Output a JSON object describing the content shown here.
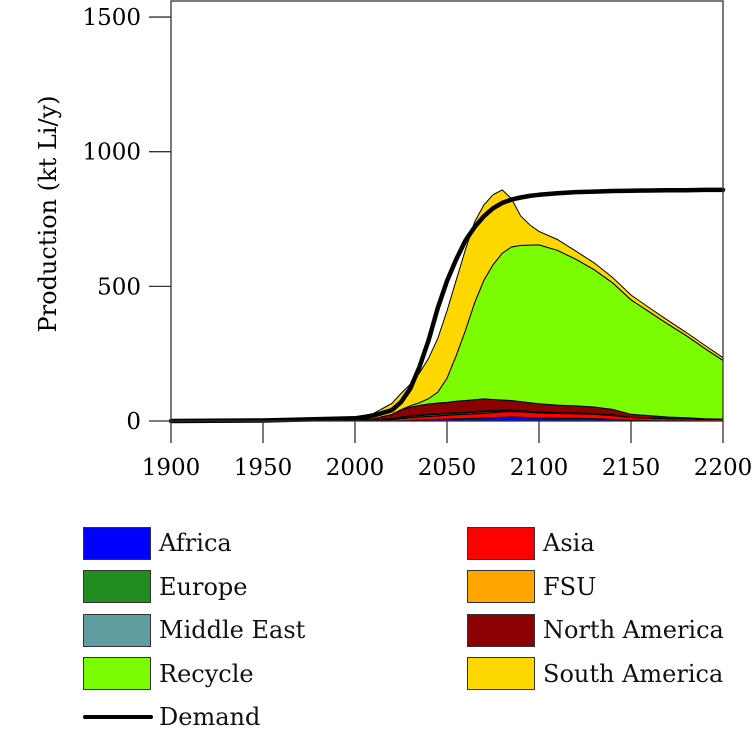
{
  "chart_data": {
    "type": "area",
    "title": "",
    "xlabel": "",
    "ylabel": "Production (kt Li/y)",
    "xlim": [
      1900,
      2200
    ],
    "ylim": [
      0,
      1560
    ],
    "xticks": [
      "1900",
      "1950",
      "2000",
      "2050",
      "2100",
      "2150",
      "2200"
    ],
    "yticks": [
      "0",
      "500",
      "1000",
      "1500"
    ],
    "grid": false,
    "legend_position": "bottom",
    "x": [
      1900,
      1950,
      2000,
      2010,
      2020,
      2025,
      2030,
      2035,
      2040,
      2045,
      2050,
      2055,
      2060,
      2065,
      2070,
      2075,
      2080,
      2085,
      2090,
      2095,
      2100,
      2110,
      2120,
      2130,
      2140,
      2150,
      2160,
      2170,
      2180,
      2190,
      2200
    ],
    "stack_order": [
      "Africa",
      "Asia",
      "Europe",
      "FSU",
      "Middle East",
      "North America",
      "Recycle",
      "South America"
    ],
    "series": [
      {
        "name": "Africa",
        "color": "#0000FF",
        "values": [
          0,
          0,
          0,
          0,
          0,
          1,
          2,
          4,
          5,
          6,
          7,
          8,
          9,
          10,
          11,
          12,
          14,
          15,
          14,
          12,
          11,
          10,
          10,
          9,
          6,
          3,
          2,
          1,
          1,
          0,
          0
        ]
      },
      {
        "name": "Asia",
        "color": "#FF0000",
        "values": [
          0,
          0,
          1,
          2,
          5,
          8,
          10,
          11,
          12,
          13,
          14,
          15,
          16,
          17,
          18,
          19,
          20,
          20,
          20,
          20,
          19,
          18,
          17,
          16,
          14,
          10,
          9,
          8,
          7,
          6,
          6
        ]
      },
      {
        "name": "Europe",
        "color": "#228B22",
        "values": [
          0,
          0,
          0,
          1,
          3,
          4,
          5,
          5,
          6,
          6,
          6,
          6,
          6,
          6,
          6,
          5,
          4,
          3,
          2,
          2,
          2,
          1,
          1,
          1,
          1,
          0,
          0,
          0,
          0,
          0,
          0
        ]
      },
      {
        "name": "FSU",
        "color": "#FFA500",
        "values": [
          0,
          0,
          0,
          0,
          1,
          1,
          1,
          1,
          1,
          1,
          1,
          1,
          1,
          1,
          1,
          1,
          1,
          1,
          1,
          1,
          1,
          1,
          1,
          1,
          1,
          0,
          0,
          0,
          0,
          0,
          0
        ]
      },
      {
        "name": "Middle East",
        "color": "#5F9EA0",
        "values": [
          0,
          0,
          0,
          0,
          1,
          1,
          1,
          1,
          1,
          1,
          1,
          1,
          1,
          1,
          1,
          1,
          1,
          1,
          1,
          1,
          1,
          1,
          1,
          1,
          1,
          0,
          0,
          0,
          0,
          0,
          0
        ]
      },
      {
        "name": "North America",
        "color": "#8B0000",
        "values": [
          0,
          0,
          2,
          5,
          15,
          25,
          32,
          36,
          38,
          40,
          40,
          42,
          43,
          44,
          45,
          42,
          38,
          36,
          34,
          32,
          30,
          28,
          26,
          24,
          20,
          12,
          9,
          6,
          4,
          2,
          1
        ]
      },
      {
        "name": "Recycle",
        "color": "#7CFC00",
        "values": [
          0,
          0,
          0,
          0,
          0,
          2,
          5,
          10,
          20,
          40,
          90,
          170,
          260,
          360,
          440,
          500,
          545,
          570,
          580,
          585,
          590,
          575,
          545,
          510,
          470,
          425,
          385,
          345,
          305,
          262,
          218
        ]
      },
      {
        "name": "South America",
        "color": "#FFD700",
        "values": [
          0,
          0,
          10,
          20,
          40,
          60,
          80,
          110,
          150,
          200,
          250,
          280,
          300,
          300,
          280,
          260,
          235,
          180,
          110,
          75,
          50,
          40,
          30,
          25,
          20,
          18,
          15,
          14,
          12,
          12,
          10
        ]
      }
    ],
    "demand": {
      "name": "Demand",
      "color": "#000000",
      "values": [
        0,
        2,
        10,
        20,
        40,
        70,
        120,
        200,
        300,
        420,
        520,
        600,
        670,
        720,
        760,
        790,
        810,
        822,
        830,
        836,
        840,
        846,
        850,
        852,
        854,
        855,
        856,
        857,
        857,
        858,
        858
      ]
    }
  },
  "legend": {
    "items": [
      {
        "label": "Africa",
        "color": "#0000FF",
        "kind": "patch"
      },
      {
        "label": "Asia",
        "color": "#FF0000",
        "kind": "patch"
      },
      {
        "label": "Europe",
        "color": "#228B22",
        "kind": "patch"
      },
      {
        "label": "FSU",
        "color": "#FFA500",
        "kind": "patch"
      },
      {
        "label": "Middle East",
        "color": "#5F9EA0",
        "kind": "patch"
      },
      {
        "label": "North America",
        "color": "#8B0000",
        "kind": "patch"
      },
      {
        "label": "Recycle",
        "color": "#7CFC00",
        "kind": "patch"
      },
      {
        "label": "South America",
        "color": "#FFD700",
        "kind": "patch"
      },
      {
        "label": "Demand",
        "color": "#000000",
        "kind": "line"
      }
    ]
  }
}
